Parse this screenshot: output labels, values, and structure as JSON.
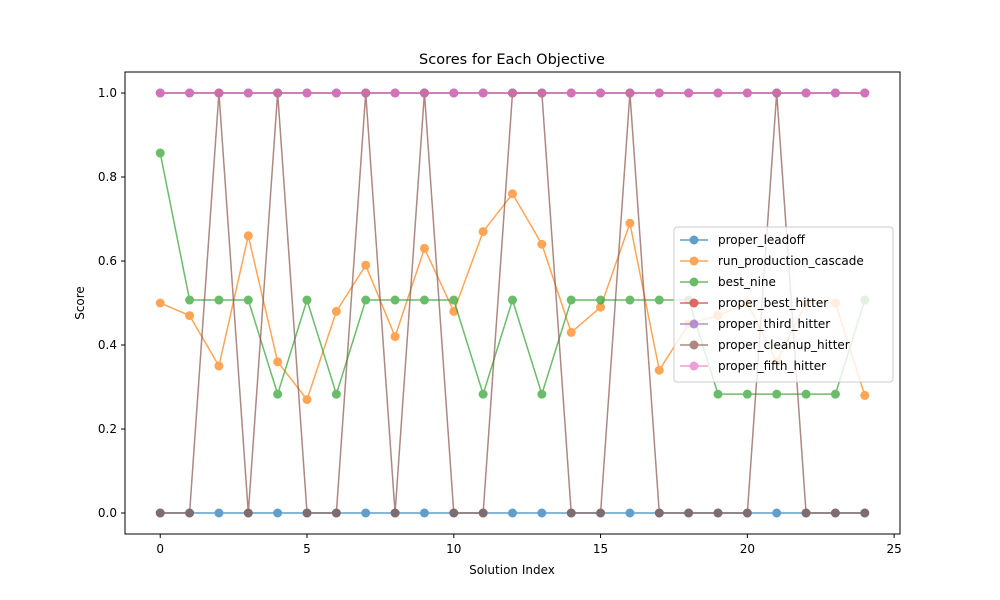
{
  "chart_data": {
    "type": "line",
    "title": "Scores for Each Objective",
    "xlabel": "Solution Index",
    "ylabel": "Score",
    "xlim": [
      -1.2,
      25.2
    ],
    "ylim": [
      -0.05,
      1.05
    ],
    "xticks": [
      0,
      5,
      10,
      15,
      20,
      25
    ],
    "xtick_labels": [
      "0",
      "5",
      "10",
      "15",
      "20",
      "25"
    ],
    "yticks": [
      0.0,
      0.2,
      0.4,
      0.6,
      0.8,
      1.0
    ],
    "ytick_labels": [
      "0.0",
      "0.2",
      "0.4",
      "0.6",
      "0.8",
      "1.0"
    ],
    "grid": false,
    "legend_position": "center-right",
    "x": [
      0,
      1,
      2,
      3,
      4,
      5,
      6,
      7,
      8,
      9,
      10,
      11,
      12,
      13,
      14,
      15,
      16,
      17,
      18,
      19,
      20,
      21,
      22,
      23,
      24
    ],
    "series": [
      {
        "name": "proper_leadoff",
        "color": "#1f77b4",
        "values": [
          0,
          0,
          0,
          0,
          0,
          0,
          0,
          0,
          0,
          0,
          0,
          0,
          0,
          0,
          0,
          0,
          0,
          0,
          0,
          0,
          0,
          0,
          0,
          0,
          0
        ]
      },
      {
        "name": "run_production_cascade",
        "color": "#ff7f0e",
        "values": [
          0.5,
          0.47,
          0.35,
          0.66,
          0.36,
          0.27,
          0.48,
          0.59,
          0.42,
          0.63,
          0.48,
          0.67,
          0.76,
          0.64,
          0.43,
          0.49,
          0.69,
          0.34,
          0.45,
          0.47,
          0.5,
          0.36,
          0.5,
          0.5,
          0.28
        ]
      },
      {
        "name": "best_nine",
        "color": "#2ca02c",
        "values": [
          0.857,
          0.507,
          0.507,
          0.507,
          0.283,
          0.507,
          0.283,
          0.507,
          0.507,
          0.507,
          0.507,
          0.283,
          0.507,
          0.283,
          0.507,
          0.507,
          0.507,
          0.507,
          0.507,
          0.283,
          0.283,
          0.283,
          0.283,
          0.283,
          0.507
        ]
      },
      {
        "name": "proper_best_hitter",
        "color": "#d62728",
        "values": [
          1,
          1,
          1,
          1,
          1,
          1,
          1,
          1,
          1,
          1,
          1,
          1,
          1,
          1,
          1,
          1,
          1,
          1,
          1,
          1,
          1,
          1,
          1,
          1,
          1
        ]
      },
      {
        "name": "proper_third_hitter",
        "color": "#9467bd",
        "values": [
          1,
          1,
          1,
          1,
          1,
          1,
          1,
          1,
          1,
          1,
          1,
          1,
          1,
          1,
          1,
          1,
          1,
          1,
          1,
          1,
          1,
          1,
          1,
          1,
          1
        ]
      },
      {
        "name": "proper_cleanup_hitter",
        "color": "#8c564b",
        "values": [
          0,
          0,
          1,
          0,
          1,
          0,
          0,
          1,
          0,
          1,
          0,
          0,
          1,
          1,
          0,
          0,
          1,
          0,
          0,
          0,
          0,
          1,
          0,
          0,
          0
        ]
      },
      {
        "name": "proper_fifth_hitter",
        "color": "#e377c2",
        "values": [
          1,
          1,
          1,
          1,
          1,
          1,
          1,
          1,
          1,
          1,
          1,
          1,
          1,
          1,
          1,
          1,
          1,
          1,
          1,
          1,
          1,
          1,
          1,
          1,
          1
        ]
      }
    ]
  }
}
